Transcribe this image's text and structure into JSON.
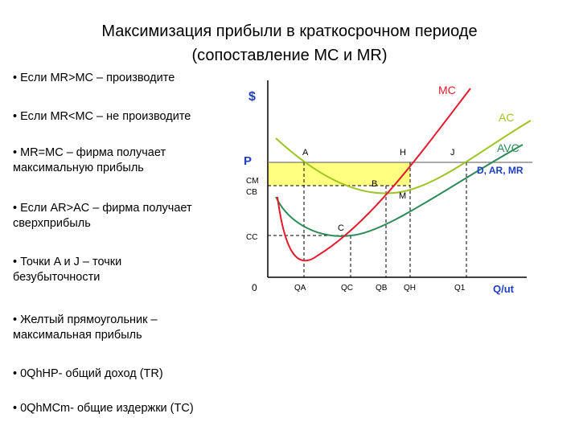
{
  "title": {
    "line1": "Максимизация прибыли в краткосрочном периоде",
    "line2": "(сопоставление MC и MR)"
  },
  "bullets": [
    "• Если MR>MC – производите",
    "• Если MR<MC – не производите",
    "• MR=MC – фирма получает\nмаксимальную прибыль",
    "• Если AR>AC – фирма получает\nсверхприбыль",
    "• Точки A и J – точки\nбезубыточности",
    "• Желтый прямоугольник –\nмаксимальная прибыль",
    "• 0QhHP- общий доход (TR)",
    "• 0QhMCm- общие издержки (TC)"
  ],
  "graph": {
    "y_axis": "$",
    "x_axis": "Q/ut",
    "origin": "0",
    "curves": {
      "mc": "MC",
      "ac": "AC",
      "avc": "AVC",
      "demand": "D, AR, MR"
    },
    "y_marks": {
      "p": "P",
      "cm": "CM",
      "cb": "CB",
      "cc": "CC"
    },
    "x_marks": {
      "qa": "QA",
      "qc": "QC",
      "qb": "QB",
      "qh": "QH",
      "q1": "Q1"
    },
    "points": {
      "a": "A",
      "h": "H",
      "j": "J",
      "b": "B",
      "m": "M",
      "c": "C"
    },
    "colors": {
      "mc": "#e8182b",
      "ac": "#9cc51f",
      "avc": "#2e8b57",
      "profit": "#ffff80",
      "demand": "#1f3fbf"
    }
  }
}
